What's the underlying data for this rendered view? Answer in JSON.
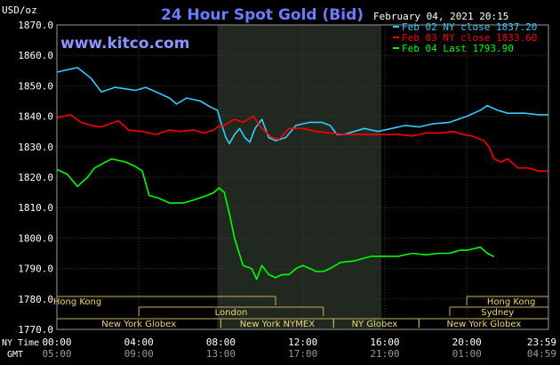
{
  "chart_data": {
    "type": "line",
    "title": "24 Hour Spot Gold (Bid)",
    "brand": "www.kitco.com",
    "date_text": "February 04, 2021 20:15",
    "yunit": "USD/oz",
    "ylim": [
      1770,
      1870
    ],
    "yticks": [
      "1870.0",
      "1860.0",
      "1850.0",
      "1840.0",
      "1830.0",
      "1820.0",
      "1810.0",
      "1800.0",
      "1790.0",
      "1780.0",
      "1770.0"
    ],
    "xlim": [
      0,
      1439
    ],
    "xticks": [
      {
        "min": 0,
        "ny": "00:00",
        "gmt": "05:00"
      },
      {
        "min": 240,
        "ny": "04:00",
        "gmt": "09:00"
      },
      {
        "min": 480,
        "ny": "08:00",
        "gmt": "13:00"
      },
      {
        "min": 720,
        "ny": "12:00",
        "gmt": "17:00"
      },
      {
        "min": 960,
        "ny": "16:00",
        "gmt": "21:00"
      },
      {
        "min": 1200,
        "ny": "20:00",
        "gmt": "01:00"
      },
      {
        "min": 1439,
        "ny": "23:59",
        "gmt": "04:59"
      }
    ],
    "row_label_ny": "NY Time",
    "row_label_gmt": "GMT",
    "highlight_range": [
      470,
      950
    ],
    "grid": true,
    "legend_position": "top-right",
    "sessions": [
      {
        "name": "Hong Kong",
        "start": 0,
        "end": 640,
        "row": 0,
        "label_at": 60
      },
      {
        "name": "Hong Kong",
        "start": 1200,
        "end": 1439,
        "row": 0,
        "label_at": 1330
      },
      {
        "name": "London",
        "start": 240,
        "end": 780,
        "row": 1,
        "label_at": 510
      },
      {
        "name": "Sydney",
        "start": 1150,
        "end": 1439,
        "row": 1,
        "label_at": 1290
      },
      {
        "name": "New York Globex",
        "start": 0,
        "end": 480,
        "row": 2,
        "label_at": 240
      },
      {
        "name": "New York NYMEX",
        "start": 480,
        "end": 810,
        "row": 2,
        "label_at": 645
      },
      {
        "name": "NY Globex",
        "start": 810,
        "end": 1060,
        "row": 2,
        "label_at": 930
      },
      {
        "name": "New York Globex",
        "start": 1060,
        "end": 1439,
        "row": 2,
        "label_at": 1250
      }
    ],
    "series": [
      {
        "name": "Feb 02 NY close 1837.20",
        "color": "#33ccff",
        "points": [
          [
            0,
            1854.5
          ],
          [
            60,
            1856
          ],
          [
            100,
            1852.5
          ],
          [
            130,
            1848
          ],
          [
            170,
            1849.5
          ],
          [
            200,
            1849
          ],
          [
            230,
            1848.5
          ],
          [
            260,
            1849.5
          ],
          [
            290,
            1848
          ],
          [
            330,
            1846
          ],
          [
            350,
            1844
          ],
          [
            380,
            1846
          ],
          [
            420,
            1845
          ],
          [
            450,
            1843
          ],
          [
            470,
            1842
          ],
          [
            480,
            1838
          ],
          [
            495,
            1833
          ],
          [
            505,
            1831
          ],
          [
            520,
            1834
          ],
          [
            535,
            1836
          ],
          [
            550,
            1833
          ],
          [
            565,
            1831.5
          ],
          [
            580,
            1836
          ],
          [
            600,
            1839
          ],
          [
            620,
            1833
          ],
          [
            640,
            1832
          ],
          [
            670,
            1833
          ],
          [
            700,
            1837
          ],
          [
            740,
            1838
          ],
          [
            775,
            1838
          ],
          [
            800,
            1837
          ],
          [
            820,
            1834
          ],
          [
            840,
            1834
          ],
          [
            870,
            1835
          ],
          [
            900,
            1836
          ],
          [
            940,
            1835
          ],
          [
            980,
            1836
          ],
          [
            1020,
            1837
          ],
          [
            1060,
            1836.5
          ],
          [
            1100,
            1837.5
          ],
          [
            1150,
            1838
          ],
          [
            1200,
            1840
          ],
          [
            1240,
            1842
          ],
          [
            1260,
            1843.5
          ],
          [
            1290,
            1842
          ],
          [
            1320,
            1841
          ],
          [
            1370,
            1841
          ],
          [
            1410,
            1840.5
          ],
          [
            1439,
            1840.5
          ]
        ]
      },
      {
        "name": "Feb 03 NY close 1833.60",
        "color": "#ff0000",
        "points": [
          [
            0,
            1839.5
          ],
          [
            40,
            1840.5
          ],
          [
            70,
            1838
          ],
          [
            100,
            1837
          ],
          [
            130,
            1836.5
          ],
          [
            180,
            1838.5
          ],
          [
            210,
            1835.5
          ],
          [
            250,
            1835
          ],
          [
            290,
            1834
          ],
          [
            330,
            1835.5
          ],
          [
            360,
            1835
          ],
          [
            400,
            1835.5
          ],
          [
            430,
            1834.5
          ],
          [
            460,
            1835.5
          ],
          [
            470,
            1836.5
          ],
          [
            490,
            1837
          ],
          [
            520,
            1839
          ],
          [
            545,
            1838
          ],
          [
            575,
            1840
          ],
          [
            600,
            1836
          ],
          [
            630,
            1833
          ],
          [
            650,
            1832.5
          ],
          [
            680,
            1836
          ],
          [
            720,
            1836
          ],
          [
            760,
            1835
          ],
          [
            800,
            1834.5
          ],
          [
            840,
            1834
          ],
          [
            880,
            1834
          ],
          [
            920,
            1834
          ],
          [
            960,
            1834
          ],
          [
            1000,
            1834
          ],
          [
            1040,
            1833.5
          ],
          [
            1080,
            1834.5
          ],
          [
            1120,
            1834.5
          ],
          [
            1160,
            1835
          ],
          [
            1190,
            1834
          ],
          [
            1215,
            1833.5
          ],
          [
            1250,
            1832
          ],
          [
            1265,
            1830
          ],
          [
            1280,
            1826
          ],
          [
            1300,
            1825
          ],
          [
            1320,
            1826
          ],
          [
            1350,
            1823
          ],
          [
            1380,
            1823
          ],
          [
            1410,
            1822
          ],
          [
            1439,
            1822
          ]
        ]
      },
      {
        "name": "Feb 04 Last 1793.90",
        "color": "#00ff00",
        "points": [
          [
            0,
            1822.5
          ],
          [
            30,
            1821
          ],
          [
            60,
            1817
          ],
          [
            90,
            1820
          ],
          [
            110,
            1823
          ],
          [
            160,
            1826
          ],
          [
            200,
            1825
          ],
          [
            230,
            1823.5
          ],
          [
            250,
            1822
          ],
          [
            270,
            1814
          ],
          [
            300,
            1813
          ],
          [
            330,
            1811.5
          ],
          [
            370,
            1811.5
          ],
          [
            400,
            1812.5
          ],
          [
            440,
            1814
          ],
          [
            460,
            1815
          ],
          [
            475,
            1816.5
          ],
          [
            490,
            1815
          ],
          [
            505,
            1808
          ],
          [
            520,
            1800
          ],
          [
            545,
            1791
          ],
          [
            570,
            1790
          ],
          [
            585,
            1786.5
          ],
          [
            600,
            1791
          ],
          [
            620,
            1788
          ],
          [
            640,
            1787
          ],
          [
            660,
            1788
          ],
          [
            680,
            1788
          ],
          [
            700,
            1790
          ],
          [
            720,
            1791
          ],
          [
            740,
            1790
          ],
          [
            760,
            1789
          ],
          [
            780,
            1789
          ],
          [
            800,
            1790
          ],
          [
            830,
            1792
          ],
          [
            870,
            1792.5
          ],
          [
            920,
            1794
          ],
          [
            960,
            1794
          ],
          [
            1000,
            1794
          ],
          [
            1040,
            1795
          ],
          [
            1080,
            1794.5
          ],
          [
            1120,
            1795
          ],
          [
            1150,
            1795
          ],
          [
            1180,
            1796
          ],
          [
            1200,
            1796
          ],
          [
            1240,
            1797
          ],
          [
            1260,
            1795
          ],
          [
            1280,
            1793.9
          ]
        ]
      }
    ]
  }
}
